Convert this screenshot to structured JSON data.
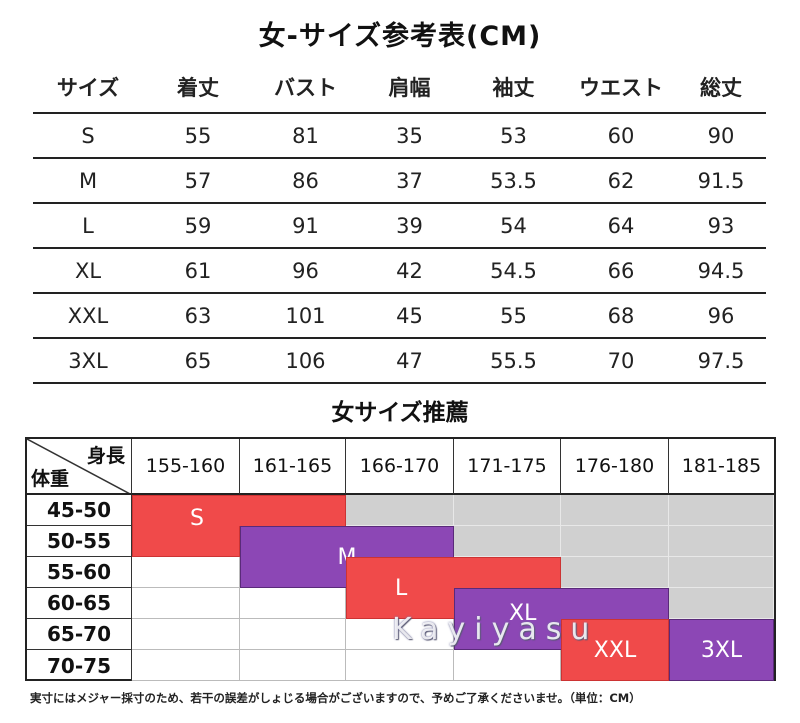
{
  "title": "女-サイズ参考表(CM)",
  "size_table": {
    "headers": [
      "サイズ",
      "着丈",
      "バスト",
      "肩幅",
      "袖丈",
      "ウエスト",
      "総丈"
    ],
    "rows": [
      [
        "S",
        "55",
        "81",
        "35",
        "53",
        "60",
        "90"
      ],
      [
        "M",
        "57",
        "86",
        "37",
        "53.5",
        "62",
        "91.5"
      ],
      [
        "L",
        "59",
        "91",
        "39",
        "54",
        "64",
        "93"
      ],
      [
        "XL",
        "61",
        "96",
        "42",
        "54.5",
        "66",
        "94.5"
      ],
      [
        "XXL",
        "63",
        "101",
        "45",
        "55",
        "68",
        "96"
      ],
      [
        "3XL",
        "65",
        "106",
        "47",
        "55.5",
        "70",
        "97.5"
      ]
    ]
  },
  "recommend_title": "女サイズ推薦",
  "recommend": {
    "corner_height": "身長",
    "corner_weight": "体重",
    "heights": [
      "155-160",
      "161-165",
      "166-170",
      "171-175",
      "176-180",
      "181-185"
    ],
    "weights": [
      "45-50",
      "50-55",
      "55-60",
      "60-65",
      "65-70",
      "70-75"
    ],
    "sizes": [
      {
        "label": "S",
        "color": "#f04a4a"
      },
      {
        "label": "M",
        "color": "#8c47b5"
      },
      {
        "label": "L",
        "color": "#f04a4a"
      },
      {
        "label": "XL",
        "color": "#8c47b5"
      },
      {
        "label": "XXL",
        "color": "#f04a4a"
      },
      {
        "label": "3XL",
        "color": "#8c47b5"
      }
    ]
  },
  "watermark": "Kayiyasu",
  "note": "実寸にはメジャー採寸のため、若干の誤差がしょじる場合がございますので、予めご了承くださいませ。（単位：CM）"
}
